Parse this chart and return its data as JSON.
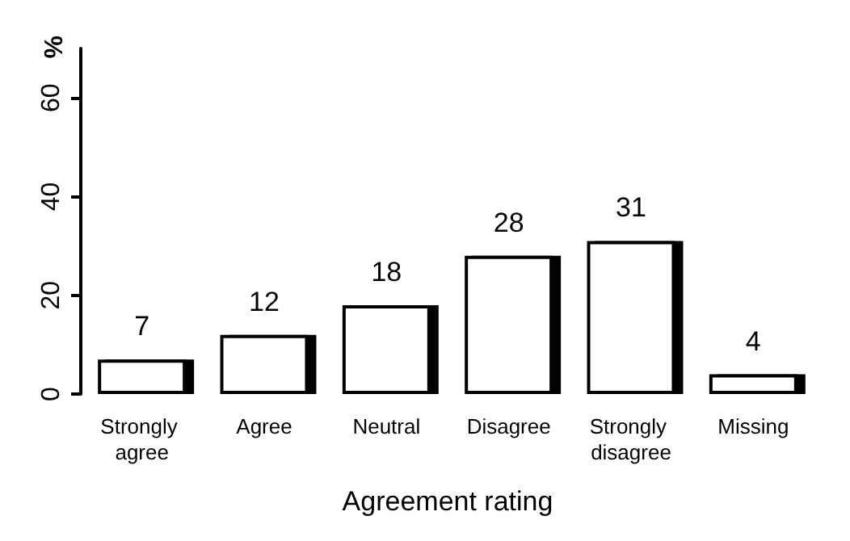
{
  "chart_data": {
    "type": "bar",
    "xlabel": "Agreement rating",
    "ylabel": "%",
    "categories": [
      "Strongly agree",
      "Agree",
      "Neutral",
      "Disagree",
      "Strongly disagree",
      "Missing"
    ],
    "values": [
      7,
      12,
      18,
      28,
      31,
      4
    ],
    "color": "#ffffff",
    "ylim": [
      0,
      70
    ],
    "yticks": [
      0,
      20,
      40,
      60
    ],
    "data_labels": true
  }
}
